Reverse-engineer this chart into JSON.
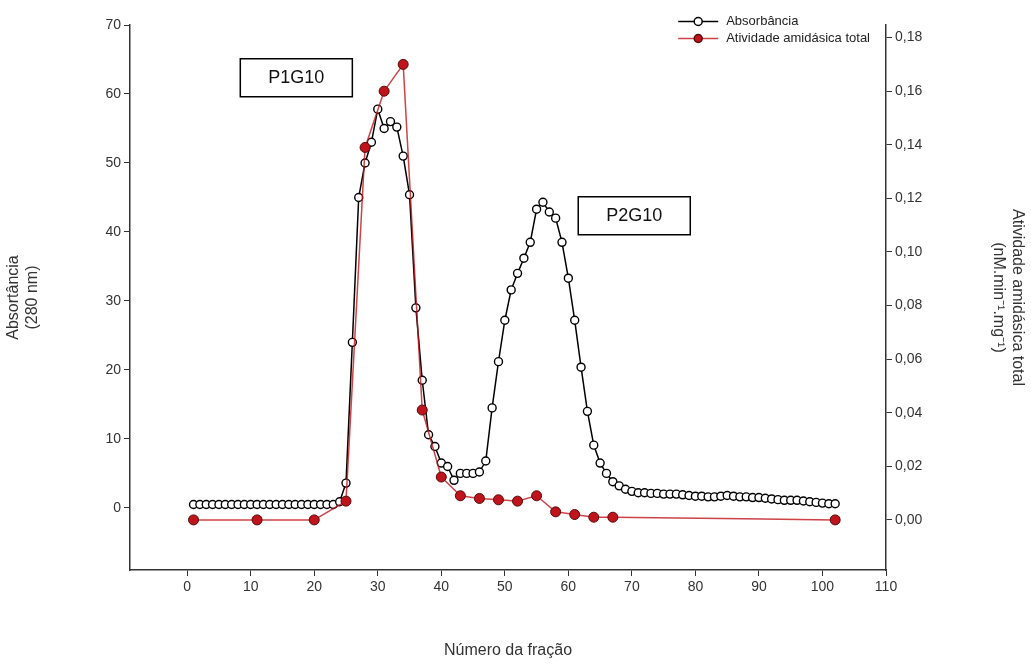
{
  "chart_data": {
    "type": "line",
    "xlabel": "Número da fração",
    "ylabel": "Absortância\n(280 nm)",
    "y2label": "Atividade amidásica total\n(nM.min⁻¹.mg⁻¹)",
    "xlim": [
      -9,
      110
    ],
    "xticks": [
      0,
      10,
      20,
      30,
      40,
      50,
      60,
      70,
      80,
      90,
      100,
      110
    ],
    "ylim": [
      -9,
      70
    ],
    "yticks": [
      0,
      10,
      20,
      30,
      40,
      50,
      60,
      70
    ],
    "y2lim": [
      -0.0187,
      0.1847
    ],
    "y2ticks": [
      {
        "value": 0,
        "label": "0,00"
      },
      {
        "value": 0.02,
        "label": "0,02"
      },
      {
        "value": 0.04,
        "label": "0,04"
      },
      {
        "value": 0.06,
        "label": "0,06"
      },
      {
        "value": 0.08,
        "label": "0,08"
      },
      {
        "value": 0.1,
        "label": "0,10"
      },
      {
        "value": 0.12,
        "label": "0,12"
      },
      {
        "value": 0.14,
        "label": "0,14"
      },
      {
        "value": 0.16,
        "label": "0,16"
      },
      {
        "value": 0.18,
        "label": "0,18"
      }
    ],
    "marker": "circle",
    "legend": "top right",
    "grid": false,
    "annotations": [
      "P1G10",
      "P2G10"
    ],
    "series": [
      {
        "name": "Absorbância",
        "color": "#000000",
        "x": [
          1,
          2,
          3,
          4,
          5,
          6,
          7,
          8,
          9,
          10,
          11,
          12,
          13,
          14,
          15,
          16,
          17,
          18,
          19,
          20,
          21,
          22,
          23,
          24,
          25,
          26,
          27,
          28,
          29,
          30,
          31,
          32,
          33,
          34,
          35,
          36,
          37,
          38,
          39,
          40,
          41,
          42,
          43,
          44,
          45,
          46,
          47,
          48,
          49,
          50,
          51,
          52,
          53,
          54,
          55,
          56,
          57,
          58,
          59,
          60,
          61,
          62,
          63,
          64,
          65,
          66,
          67,
          68,
          69,
          70,
          71,
          72,
          73,
          74,
          75,
          76,
          77,
          78,
          79,
          80,
          81,
          82,
          83,
          84,
          85,
          86,
          87,
          88,
          89,
          90,
          91,
          92,
          93,
          94,
          95,
          96,
          97,
          98,
          99,
          100,
          101,
          102
        ],
        "values": [
          0.5,
          0.5,
          0.5,
          0.5,
          0.5,
          0.5,
          0.5,
          0.5,
          0.5,
          0.5,
          0.5,
          0.5,
          0.5,
          0.5,
          0.5,
          0.5,
          0.5,
          0.5,
          0.5,
          0.5,
          0.5,
          0.5,
          0.5,
          0.9,
          3.6,
          24,
          45,
          50,
          53,
          57.8,
          55,
          56,
          55.2,
          51,
          45.4,
          29,
          18.5,
          10.6,
          8.9,
          6.5,
          6,
          4,
          5,
          5,
          5,
          5.2,
          6.8,
          14.5,
          21.2,
          27.2,
          31.6,
          34,
          36.2,
          38.5,
          43.3,
          44.3,
          42.9,
          42,
          38.5,
          33.3,
          27.2,
          20.4,
          14,
          9.1,
          6.5,
          5,
          3.8,
          3.2,
          2.7,
          2.4,
          2.2,
          2.2,
          2.1,
          2.1,
          2,
          2,
          2,
          1.9,
          1.8,
          1.7,
          1.7,
          1.6,
          1.6,
          1.7,
          1.8,
          1.7,
          1.6,
          1.6,
          1.5,
          1.5,
          1.4,
          1.3,
          1.2,
          1.1,
          1.1,
          1.1,
          1,
          0.9,
          0.8,
          0.7,
          0.6,
          0.6
        ]
      },
      {
        "name": "Atividade amidásica total",
        "color": "#c0141c",
        "axis": "y2",
        "x": [
          1,
          11,
          20,
          25,
          28,
          31,
          34,
          37,
          40,
          43,
          46,
          49,
          52,
          55,
          58,
          61,
          64,
          67,
          102
        ],
        "values": [
          0,
          0,
          0,
          0.007,
          0.139,
          0.16,
          0.17,
          0.041,
          0.016,
          0.009,
          0.008,
          0.0075,
          0.007,
          0.009,
          0.003,
          0.002,
          0.001,
          0.001,
          0
        ]
      }
    ]
  }
}
